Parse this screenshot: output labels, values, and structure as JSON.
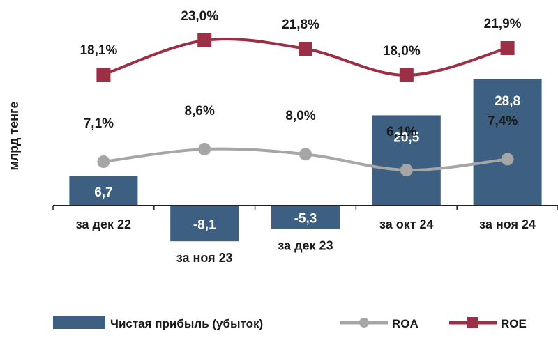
{
  "chart_data": {
    "type": "bar",
    "ylabel": "млрд тенге",
    "categories": [
      "за дек 22",
      "за ноя 23",
      "за дек 23",
      "за окт 24",
      "за ноя 24"
    ],
    "series": [
      {
        "name": "Чистая прибыль (убыток)",
        "kind": "bar",
        "values": [
          6.7,
          -8.1,
          -5.3,
          20.5,
          28.8
        ],
        "labels": [
          "6,7",
          "-8,1",
          "-5,3",
          "20,5",
          "28,8"
        ],
        "color": "#3d5f82"
      },
      {
        "name": "ROA",
        "kind": "line",
        "marker": "circle",
        "values": [
          7.1,
          8.6,
          8.0,
          6.1,
          7.4
        ],
        "labels": [
          "7,1%",
          "8,6%",
          "8,0%",
          "6,1%",
          "7,4%"
        ],
        "color": "#a6a6a6"
      },
      {
        "name": "ROE",
        "kind": "line",
        "marker": "square",
        "values": [
          18.1,
          23.0,
          21.8,
          18.0,
          21.9
        ],
        "labels": [
          "18,1%",
          "23,0%",
          "21,8%",
          "18,0%",
          "21,9%"
        ],
        "color": "#9b2f45"
      }
    ],
    "legend_position": "bottom",
    "grid": false
  }
}
